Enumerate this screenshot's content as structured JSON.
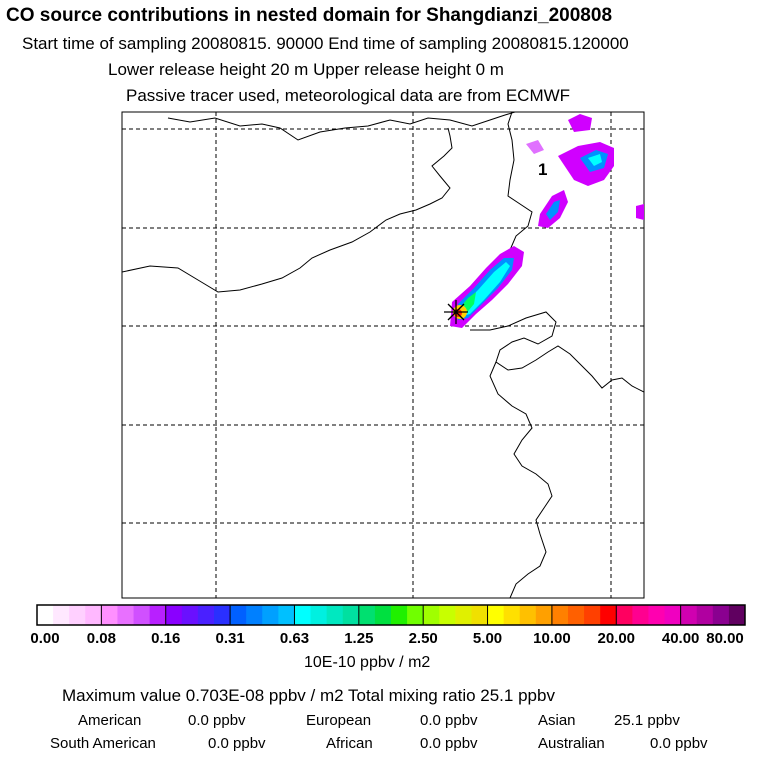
{
  "header": {
    "title": "CO  source contributions in nested domain for Shangdianzi_200808",
    "line1": "Start time of sampling 20080815. 90000     End time of sampling 20080815.120000",
    "line2": "Lower release height   20 m          Upper release height    0 m",
    "line3": "Passive tracer used, meteorological data are from ECMWF"
  },
  "map": {
    "marker_label": "1",
    "station_marker_icon": "star-marker",
    "plume_colors": [
      "#d000ff",
      "#7a00ff",
      "#0090ff",
      "#00ffff",
      "#00ff60",
      "#c8ff00",
      "#ffd000",
      "#ff3000"
    ]
  },
  "colorbar": {
    "labels": [
      "0.00",
      "0.08",
      "0.16",
      "0.31",
      "0.63",
      "1.25",
      "2.50",
      "5.00",
      "10.00",
      "20.00",
      "40.00",
      "80.00"
    ],
    "colors": [
      [
        "#ffffff",
        "#ffe8ff",
        "#ffd0ff",
        "#ffb8ff"
      ],
      [
        "#ff90ff",
        "#e870ff",
        "#d050ff",
        "#b820ff"
      ],
      [
        "#8a00ff",
        "#6a10ff",
        "#4a20ff",
        "#2a30ff"
      ],
      [
        "#0060ff",
        "#0080ff",
        "#00a0ff",
        "#00c0ff"
      ],
      [
        "#00ffff",
        "#00f0e0",
        "#00e8c0",
        "#00e0a0"
      ],
      [
        "#00e070",
        "#00e040",
        "#20f000",
        "#70ff00"
      ],
      [
        "#a0ff00",
        "#c8ff00",
        "#e0f000",
        "#f0e000"
      ],
      [
        "#ffff00",
        "#ffe000",
        "#ffc000",
        "#ffa000"
      ],
      [
        "#ff8000",
        "#ff6000",
        "#ff4000",
        "#ff0000"
      ],
      [
        "#ff0060",
        "#ff0090",
        "#ff00b0",
        "#f000c0"
      ],
      [
        "#d000b0",
        "#b000a0",
        "#8a0090",
        "#600060"
      ]
    ],
    "unit": "10E-10 ppbv / m2"
  },
  "summary": {
    "max_line": "Maximum value  0.703E-08 ppbv / m2      Total mixing ratio       25.1 ppbv",
    "american_label": "American",
    "american_value": "0.0 ppbv",
    "european_label": "European",
    "european_value": "0.0 ppbv",
    "asian_label": "Asian",
    "asian_value": "25.1 ppbv",
    "south_american_label": "South American",
    "south_american_value": "0.0 ppbv",
    "african_label": "African",
    "african_value": "0.0 ppbv",
    "australian_label": "Australian",
    "australian_value": "0.0 ppbv"
  }
}
